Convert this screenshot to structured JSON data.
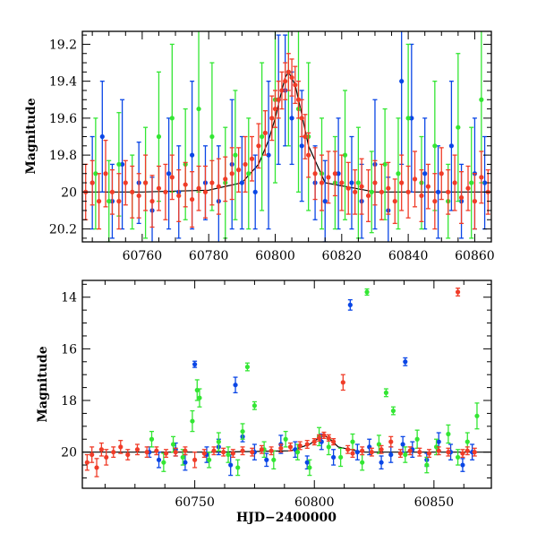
{
  "chart_data": [
    {
      "type": "scatter",
      "panel": "top",
      "xlabel": "",
      "ylabel": "Magnitude",
      "xlim": [
        60742,
        60865
      ],
      "ylim": [
        20.27,
        19.13
      ],
      "y_inverted": true,
      "x_ticks": [
        60760,
        60780,
        60800,
        60820,
        60840,
        60860
      ],
      "y_ticks": [
        19.2,
        19.4,
        19.6,
        19.8,
        20,
        20.2
      ],
      "grid": false,
      "legend": "none",
      "series": [
        {
          "color": "#0a46e6",
          "x": [
            60745,
            60748,
            60751,
            60754,
            60759,
            60763,
            60768,
            60771,
            60775,
            60779,
            60783,
            60787,
            60790,
            60794,
            60798,
            60801,
            60803,
            60805,
            60808,
            60812,
            60815,
            60819,
            60823,
            60826,
            60830,
            60834,
            60838,
            60841,
            60845,
            60849,
            60853,
            60856,
            60860,
            60863
          ],
          "y": [
            19.95,
            19.7,
            20.05,
            19.85,
            19.95,
            20.1,
            19.9,
            20.0,
            19.8,
            19.95,
            20.05,
            19.85,
            19.95,
            20.0,
            19.8,
            19.5,
            19.45,
            19.6,
            19.75,
            19.95,
            20.05,
            19.9,
            19.95,
            20.05,
            19.85,
            20.1,
            19.4,
            19.6,
            19.9,
            20.0,
            19.75,
            20.05,
            19.9,
            19.95
          ],
          "yerr": [
            0.25,
            0.3,
            0.2,
            0.35,
            0.22,
            0.18,
            0.3,
            0.25,
            0.4,
            0.2,
            0.3,
            0.35,
            0.25,
            0.2,
            0.4,
            0.35,
            0.3,
            0.25,
            0.3,
            0.2,
            0.22,
            0.3,
            0.25,
            0.2,
            0.35,
            0.18,
            0.45,
            0.4,
            0.3,
            0.25,
            0.35,
            0.2,
            0.3,
            0.25
          ]
        },
        {
          "color": "#33e633",
          "x": [
            60746,
            60750,
            60753,
            60757,
            60761,
            60765,
            60769,
            60773,
            60777,
            60781,
            60785,
            60788,
            60792,
            60796,
            60800,
            60804,
            60807,
            60810,
            60814,
            60818,
            60821,
            60825,
            60829,
            60833,
            60837,
            60840,
            60844,
            60848,
            60852,
            60855,
            60859,
            60862
          ],
          "y": [
            19.9,
            20.05,
            19.85,
            20.0,
            19.95,
            19.7,
            19.6,
            19.85,
            19.55,
            19.7,
            19.95,
            19.8,
            19.9,
            19.7,
            19.5,
            19.35,
            19.55,
            19.7,
            19.9,
            19.95,
            19.8,
            19.95,
            20.0,
            19.85,
            19.9,
            19.6,
            19.95,
            19.75,
            20.05,
            19.65,
            19.95,
            19.5
          ],
          "yerr": [
            0.3,
            0.22,
            0.28,
            0.2,
            0.3,
            0.35,
            0.4,
            0.3,
            0.45,
            0.4,
            0.3,
            0.35,
            0.3,
            0.4,
            0.45,
            0.4,
            0.45,
            0.4,
            0.3,
            0.25,
            0.35,
            0.3,
            0.22,
            0.3,
            0.3,
            0.4,
            0.25,
            0.35,
            0.2,
            0.4,
            0.3,
            0.45
          ]
        },
        {
          "color": "#f03c28",
          "x": [
            60743,
            60745,
            60747,
            60749,
            60751,
            60753,
            60755,
            60757,
            60759,
            60761,
            60763,
            60765,
            60767,
            60769,
            60771,
            60773,
            60775,
            60777,
            60779,
            60781,
            60783,
            60785,
            60787,
            60789,
            60791,
            60793,
            60795,
            60797,
            60799,
            60800,
            60801,
            60802,
            60803,
            60804,
            60805,
            60806,
            60807,
            60808,
            60809,
            60810,
            60812,
            60814,
            60816,
            60818,
            60820,
            60822,
            60824,
            60826,
            60828,
            60830,
            60832,
            60834,
            60836,
            60838,
            60840,
            60842,
            60844,
            60846,
            60848,
            60850,
            60852,
            60854,
            60856,
            60858,
            60860,
            60862,
            60864
          ],
          "y": [
            20.0,
            19.95,
            20.05,
            19.9,
            20.0,
            20.05,
            19.95,
            20.0,
            20.02,
            19.95,
            20.05,
            19.98,
            20.0,
            19.92,
            20.02,
            19.96,
            20.04,
            19.98,
            20.0,
            19.95,
            19.97,
            19.93,
            19.9,
            19.88,
            19.85,
            19.82,
            19.75,
            19.68,
            19.6,
            19.55,
            19.5,
            19.45,
            19.4,
            19.35,
            19.38,
            19.42,
            19.5,
            19.6,
            19.7,
            19.8,
            19.9,
            19.95,
            19.92,
            19.9,
            19.95,
            19.98,
            20.0,
            19.97,
            20.02,
            19.95,
            20.0,
            19.98,
            20.05,
            19.95,
            20.0,
            19.93,
            20.02,
            19.97,
            20.05,
            19.9,
            20.0,
            19.95,
            20.03,
            19.98,
            20.05,
            19.92,
            20.0
          ],
          "yerr": [
            0.15,
            0.12,
            0.15,
            0.18,
            0.12,
            0.15,
            0.12,
            0.14,
            0.12,
            0.15,
            0.14,
            0.12,
            0.15,
            0.12,
            0.14,
            0.12,
            0.15,
            0.12,
            0.14,
            0.12,
            0.15,
            0.12,
            0.14,
            0.12,
            0.15,
            0.12,
            0.12,
            0.12,
            0.12,
            0.1,
            0.1,
            0.1,
            0.1,
            0.1,
            0.1,
            0.1,
            0.1,
            0.1,
            0.12,
            0.12,
            0.14,
            0.15,
            0.14,
            0.12,
            0.15,
            0.14,
            0.12,
            0.15,
            0.14,
            0.12,
            0.15,
            0.14,
            0.12,
            0.15,
            0.14,
            0.15,
            0.14,
            0.12,
            0.15,
            0.14,
            0.12,
            0.15,
            0.14,
            0.12,
            0.15,
            0.14,
            0.12
          ]
        }
      ],
      "model_curve": {
        "color": "#000000",
        "x": [
          60742,
          60760,
          60780,
          60790,
          60795,
          60798,
          60800,
          60802,
          60803,
          60804,
          60806,
          60808,
          60810,
          60815,
          60830,
          60865
        ],
        "y": [
          20.0,
          20.0,
          19.99,
          19.95,
          19.85,
          19.72,
          19.6,
          19.45,
          19.38,
          19.35,
          19.42,
          19.58,
          19.75,
          19.95,
          20.0,
          20.0
        ]
      }
    },
    {
      "type": "scatter",
      "panel": "bottom",
      "xlabel": "HJD−2400000",
      "ylabel": "Magnitude",
      "xlim": [
        60703,
        60874
      ],
      "ylim": [
        21.4,
        13.35
      ],
      "y_inverted": true,
      "x_ticks": [
        60750,
        60800,
        60850
      ],
      "y_ticks": [
        14,
        16,
        18,
        20
      ],
      "grid": false,
      "legend": "none",
      "series": [
        {
          "color": "#0a46e6",
          "x": [
            60731,
            60735,
            60742,
            60746,
            60750,
            60755,
            60760,
            60765,
            60767,
            60770,
            60775,
            60780,
            60786,
            60792,
            60797,
            60803,
            60808,
            60815,
            60818,
            60823,
            60828,
            60832,
            60837,
            60838,
            60841,
            60847,
            60852,
            60857,
            60862,
            60866
          ],
          "y": [
            20.0,
            20.3,
            19.9,
            20.4,
            16.6,
            20.1,
            19.8,
            20.5,
            17.4,
            19.4,
            20.0,
            20.3,
            19.7,
            19.9,
            20.4,
            19.6,
            20.2,
            14.3,
            20.0,
            19.8,
            20.4,
            20.1,
            19.7,
            16.5,
            19.9,
            20.3,
            19.6,
            20.0,
            20.5,
            20.0
          ],
          "yerr": [
            0.2,
            0.3,
            0.25,
            0.3,
            0.12,
            0.3,
            0.3,
            0.4,
            0.3,
            0.2,
            0.3,
            0.25,
            0.35,
            0.3,
            0.25,
            0.3,
            0.3,
            0.2,
            0.3,
            0.3,
            0.25,
            0.3,
            0.3,
            0.15,
            0.3,
            0.25,
            0.35,
            0.3,
            0.25,
            0.3
          ]
        },
        {
          "color": "#33e633",
          "x": [
            60732,
            60737,
            60741,
            60745,
            60749,
            60751,
            60752,
            60756,
            60760,
            60764,
            60768,
            60770,
            60772,
            60775,
            60779,
            60783,
            60788,
            60793,
            60798,
            60802,
            60806,
            60811,
            60816,
            60820,
            60822,
            60827,
            60830,
            60833,
            60838,
            60843,
            60847,
            60851,
            60856,
            60860,
            60864,
            60868
          ],
          "y": [
            19.5,
            20.4,
            19.7,
            20.2,
            18.8,
            17.6,
            17.9,
            20.3,
            19.6,
            20.1,
            20.6,
            19.2,
            16.7,
            18.2,
            19.9,
            20.3,
            19.5,
            20.0,
            20.6,
            19.4,
            19.8,
            20.2,
            19.6,
            20.4,
            13.8,
            19.7,
            17.7,
            18.4,
            20.1,
            19.5,
            20.5,
            19.8,
            19.3,
            20.2,
            19.6,
            18.6
          ],
          "yerr": [
            0.3,
            0.35,
            0.3,
            0.3,
            0.4,
            0.4,
            0.35,
            0.3,
            0.35,
            0.3,
            0.3,
            0.3,
            0.15,
            0.15,
            0.3,
            0.35,
            0.3,
            0.3,
            0.3,
            0.35,
            0.3,
            0.35,
            0.3,
            0.3,
            0.12,
            0.35,
            0.15,
            0.15,
            0.3,
            0.35,
            0.3,
            0.3,
            0.35,
            0.3,
            0.35,
            0.5
          ]
        },
        {
          "color": "#f03c28",
          "x": [
            60705,
            60707,
            60709,
            60711,
            60713,
            60716,
            60719,
            60722,
            60726,
            60730,
            60734,
            60738,
            60742,
            60746,
            60750,
            60754,
            60758,
            60762,
            60766,
            60770,
            60774,
            60778,
            60782,
            60786,
            60790,
            60794,
            60797,
            60800,
            60802,
            60804,
            60806,
            60808,
            60812,
            60814,
            60816,
            60820,
            60824,
            60828,
            60832,
            60836,
            60840,
            60844,
            60848,
            60852,
            60856,
            60860,
            60862,
            60864,
            60867
          ],
          "y": [
            20.4,
            20.1,
            20.6,
            19.9,
            20.2,
            20.0,
            19.8,
            20.1,
            19.9,
            20.0,
            19.95,
            20.05,
            20.0,
            19.95,
            20.3,
            20.05,
            19.95,
            20.0,
            20.05,
            19.95,
            20.0,
            19.9,
            19.95,
            19.85,
            19.8,
            19.75,
            19.7,
            19.6,
            19.45,
            19.35,
            19.45,
            19.6,
            17.3,
            19.9,
            20.05,
            19.95,
            20.0,
            19.9,
            19.6,
            20.05,
            19.95,
            20.0,
            20.05,
            19.95,
            20.0,
            13.8,
            20.05,
            19.95,
            20.0
          ],
          "yerr": [
            0.3,
            0.3,
            0.35,
            0.25,
            0.3,
            0.2,
            0.25,
            0.2,
            0.2,
            0.2,
            0.15,
            0.15,
            0.15,
            0.15,
            0.3,
            0.15,
            0.15,
            0.15,
            0.15,
            0.15,
            0.15,
            0.15,
            0.15,
            0.15,
            0.15,
            0.15,
            0.15,
            0.12,
            0.12,
            0.12,
            0.12,
            0.12,
            0.3,
            0.15,
            0.15,
            0.15,
            0.15,
            0.15,
            0.2,
            0.15,
            0.15,
            0.15,
            0.15,
            0.15,
            0.15,
            0.15,
            0.15,
            0.15,
            0.15
          ]
        }
      ],
      "model_curve": {
        "color": "#000000",
        "x": [
          60703,
          60760,
          60790,
          60798,
          60802,
          60804,
          60806,
          60810,
          60820,
          60874
        ],
        "y": [
          20.0,
          20.0,
          19.95,
          19.7,
          19.45,
          19.35,
          19.45,
          19.8,
          20.0,
          20.0
        ]
      }
    }
  ]
}
